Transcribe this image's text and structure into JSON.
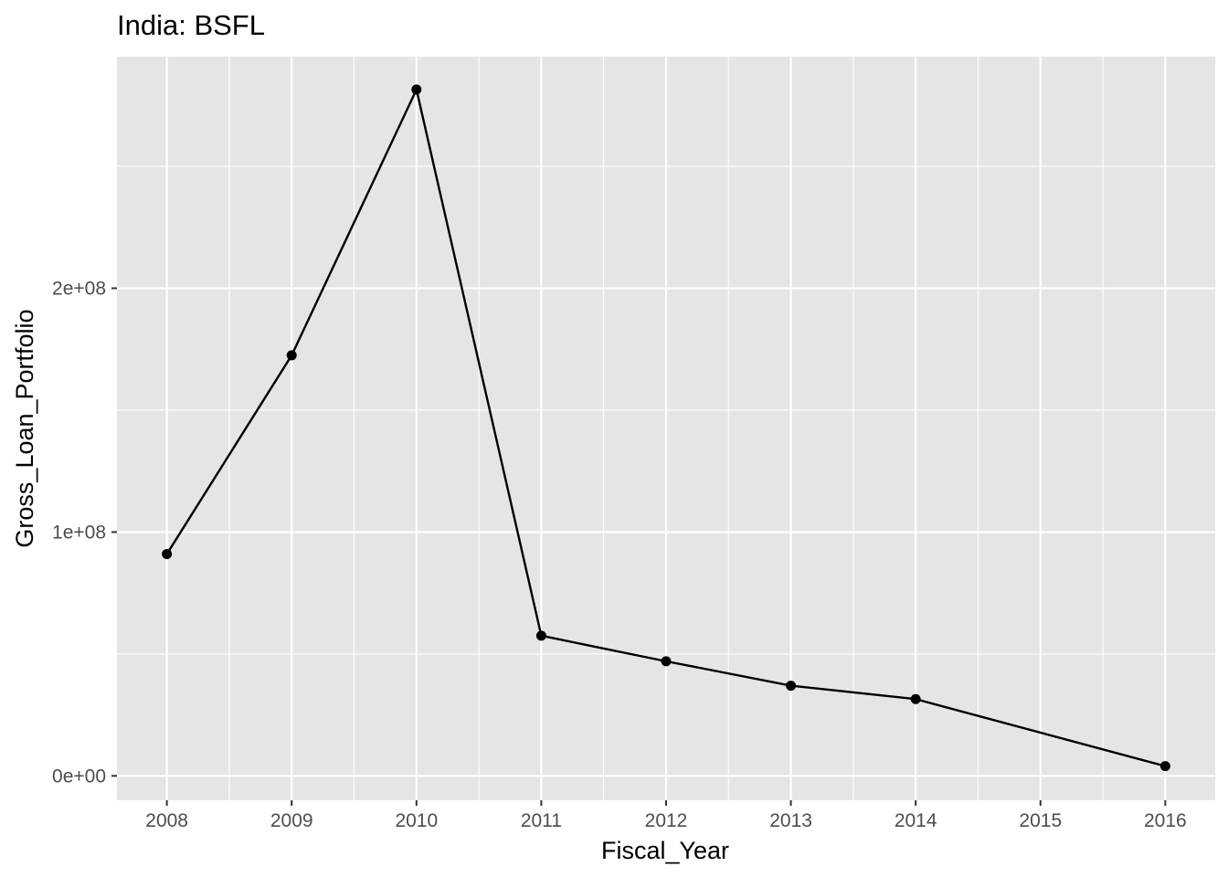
{
  "chart_data": {
    "type": "line",
    "title": "India:  BSFL",
    "xlabel": "Fiscal_Year",
    "ylabel": "Gross_Loan_Portfolio",
    "x_ticks": [
      "2008",
      "2009",
      "2010",
      "2011",
      "2012",
      "2013",
      "2014",
      "2015",
      "2016"
    ],
    "y_ticks": [
      {
        "value": 0,
        "label": "0e+00"
      },
      {
        "value": 100000000,
        "label": "1e+08"
      },
      {
        "value": 200000000,
        "label": "2e+08"
      }
    ],
    "xlim": [
      2007.6,
      2016.4
    ],
    "ylim": [
      -10000000,
      295000000
    ],
    "grid": true,
    "series": [
      {
        "x": [
          2008,
          2009,
          2010,
          2011,
          2012,
          2013,
          2014,
          2016
        ],
        "y": [
          91000000,
          172500000,
          281500000,
          57500000,
          47000000,
          37000000,
          31500000,
          4000000
        ]
      }
    ],
    "colors": {
      "panel": "#e5e5e5",
      "grid": "#ffffff",
      "line": "#000000",
      "tick_text": "#4d4d4d",
      "tick_mark": "#333333"
    }
  }
}
